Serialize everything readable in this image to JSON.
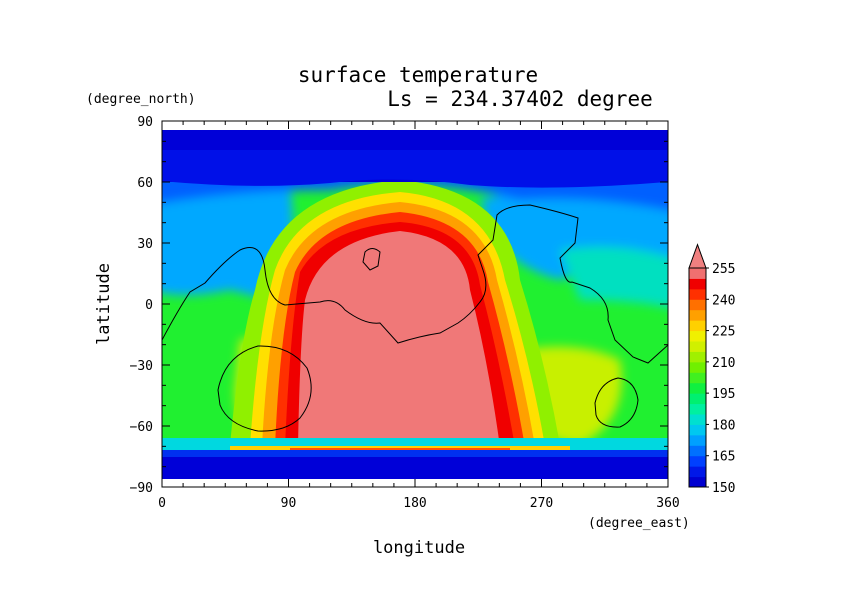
{
  "chart_data": {
    "type": "heatmap",
    "title": "surface temperature",
    "subtitle": "Ls = 234.37402 degree",
    "xlabel": "longitude",
    "ylabel": "latitude",
    "x_unit": "(degree_east)",
    "y_unit": "(degree_north)",
    "xlim": [
      0,
      360
    ],
    "ylim": [
      -90,
      90
    ],
    "x_ticks": [
      "0",
      "90",
      "180",
      "270",
      "360"
    ],
    "x_tick_values": [
      0,
      90,
      180,
      270,
      360
    ],
    "y_ticks": [
      "90",
      "60",
      "30",
      "0",
      "−30",
      "−60",
      "−90"
    ],
    "y_tick_values": [
      90,
      60,
      30,
      0,
      -30,
      -60,
      -90
    ],
    "colorbar": {
      "labels": [
        "255",
        "240",
        "225",
        "210",
        "195",
        "180",
        "165",
        "150"
      ],
      "label_values": [
        255,
        240,
        225,
        210,
        195,
        180,
        165,
        150
      ],
      "levels": [
        150,
        155,
        160,
        165,
        170,
        175,
        180,
        185,
        190,
        195,
        200,
        205,
        210,
        215,
        220,
        225,
        230,
        235,
        240,
        245,
        250,
        255
      ],
      "extend": "max",
      "colors": [
        "#0000d0",
        "#0018e8",
        "#0040ff",
        "#0070ff",
        "#00a0ff",
        "#00c8f0",
        "#00e0d0",
        "#00f0a0",
        "#00f070",
        "#10f040",
        "#40f020",
        "#70f000",
        "#a0f000",
        "#d0f000",
        "#f0f000",
        "#ffd000",
        "#ffa000",
        "#ff7000",
        "#ff3000",
        "#f00000",
        "#f07070",
        "#f08080"
      ]
    },
    "regions_approx_K": {
      "south_polar_band_lat_-90_to_-75": 150,
      "polar_band_edge_lat_-72": 240,
      "north_polar_lat_55_to_85": 150,
      "warm_core_lon_100_to_230_lat_-70_to_30": 258,
      "mid_latitudes_west_east": 200
    },
    "contour_color": "#000000"
  }
}
